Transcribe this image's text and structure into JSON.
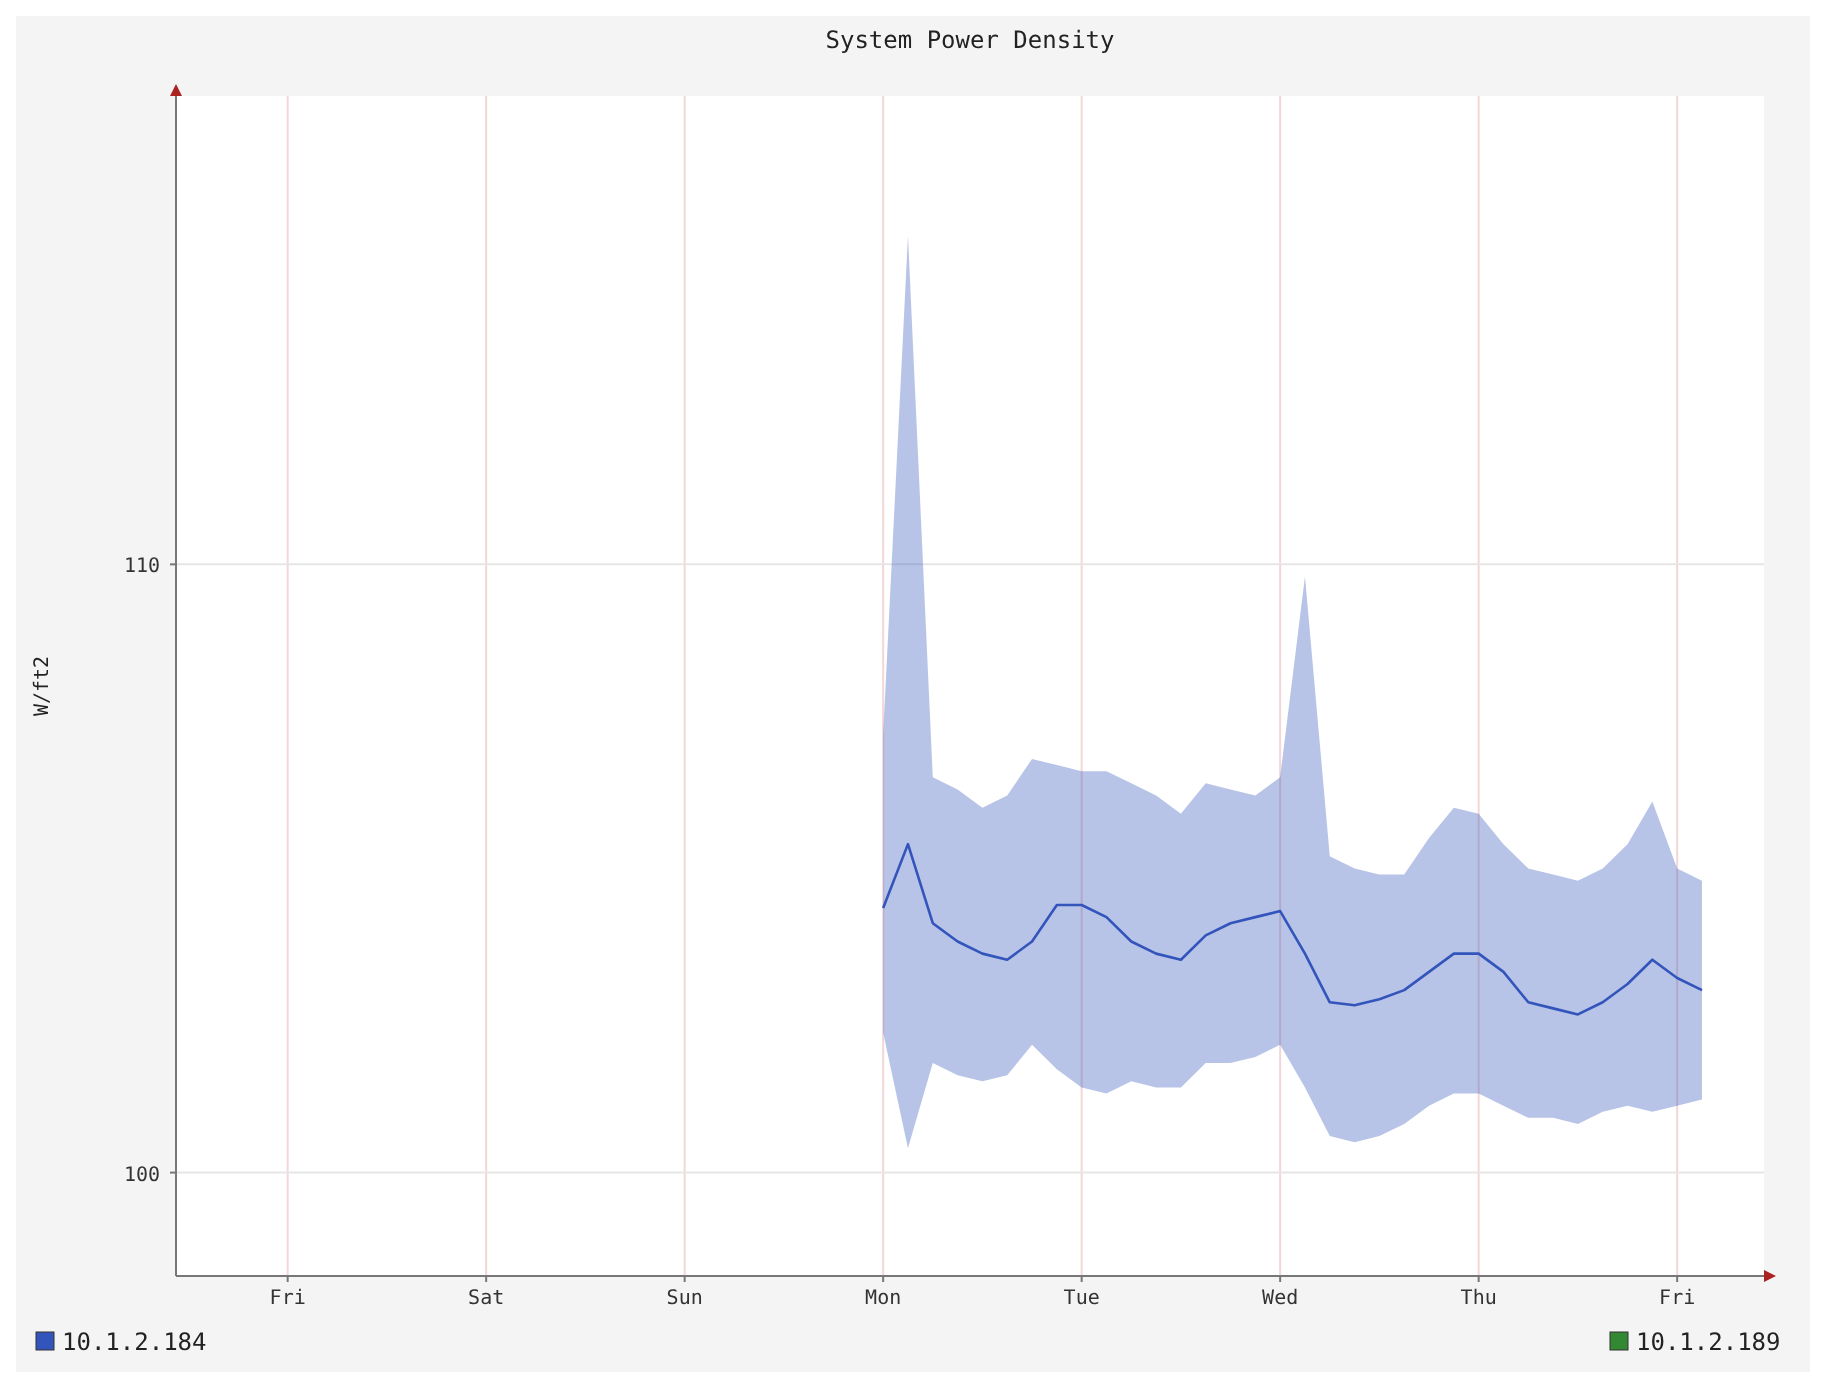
{
  "chart_data": {
    "type": "line",
    "title": "System Power Density",
    "ylabel": "W/ft2",
    "ylim": [
      98.3,
      117.7
    ],
    "yticks": [
      100,
      110
    ],
    "grid": true,
    "legend": "bottom",
    "line_style": "solid",
    "marker": "none",
    "categories": [
      null,
      null,
      null,
      null,
      "Fri",
      null,
      null,
      null,
      null,
      null,
      null,
      null,
      "Sat",
      null,
      null,
      null,
      null,
      null,
      null,
      null,
      "Sun",
      null,
      null,
      null,
      null,
      null,
      null,
      null,
      "Mon",
      null,
      null,
      null,
      null,
      null,
      null,
      null,
      "Tue",
      null,
      null,
      null,
      null,
      null,
      null,
      null,
      "Wed",
      null,
      null,
      null,
      null,
      null,
      null,
      null,
      "Thu",
      null,
      null,
      null,
      null,
      null,
      null,
      null,
      "Fri",
      null,
      null,
      null
    ],
    "series": [
      {
        "name": "10.1.2.184",
        "color": "#3355bb",
        "values": [
          null,
          null,
          null,
          null,
          null,
          null,
          null,
          null,
          null,
          null,
          null,
          null,
          null,
          null,
          null,
          null,
          null,
          null,
          null,
          null,
          null,
          null,
          null,
          null,
          null,
          null,
          null,
          null,
          104.35,
          105.4,
          104.1,
          103.8,
          103.6,
          103.5,
          103.8,
          104.4,
          104.4,
          104.2,
          103.8,
          103.6,
          103.5,
          103.9,
          104.1,
          104.2,
          104.3,
          103.6,
          102.8,
          102.75,
          102.85,
          103.0,
          103.3,
          103.6,
          103.6,
          103.3,
          102.8,
          102.7,
          102.6,
          102.8,
          103.1,
          103.5,
          103.2,
          103.0,
          null,
          null
        ],
        "upper": [
          null,
          null,
          null,
          null,
          null,
          null,
          null,
          null,
          null,
          null,
          null,
          null,
          null,
          null,
          null,
          null,
          null,
          null,
          null,
          null,
          null,
          null,
          null,
          null,
          null,
          null,
          null,
          null,
          107.2,
          115.4,
          106.5,
          106.3,
          106.0,
          106.2,
          106.8,
          106.7,
          106.6,
          106.6,
          106.4,
          106.2,
          105.9,
          106.4,
          106.3,
          106.2,
          106.5,
          109.8,
          105.2,
          105.0,
          104.9,
          104.9,
          105.5,
          106.0,
          105.9,
          105.4,
          105.0,
          104.9,
          104.8,
          105.0,
          105.4,
          106.1,
          105.0,
          104.8,
          null,
          null
        ],
        "lower": [
          null,
          null,
          null,
          null,
          null,
          null,
          null,
          null,
          null,
          null,
          null,
          null,
          null,
          null,
          null,
          null,
          null,
          null,
          null,
          null,
          null,
          null,
          null,
          null,
          null,
          null,
          null,
          null,
          102.3,
          100.4,
          101.8,
          101.6,
          101.5,
          101.6,
          102.1,
          101.7,
          101.4,
          101.3,
          101.5,
          101.4,
          101.4,
          101.8,
          101.8,
          101.9,
          102.1,
          101.4,
          100.6,
          100.5,
          100.6,
          100.8,
          101.1,
          101.3,
          101.3,
          101.1,
          100.9,
          100.9,
          100.8,
          101.0,
          101.1,
          101.0,
          101.1,
          101.2,
          null,
          null
        ]
      },
      {
        "name": "10.1.2.189",
        "color": "#338833",
        "values": [
          null,
          null,
          null,
          null,
          null,
          null,
          null,
          null,
          null,
          null,
          null,
          null,
          null,
          null,
          null,
          null,
          null,
          null,
          null,
          null,
          null,
          null,
          null,
          null,
          null,
          null,
          null,
          null,
          null,
          null,
          null,
          null,
          null,
          null,
          null,
          null,
          null,
          null,
          null,
          null,
          null,
          null,
          null,
          null,
          null,
          null,
          null,
          null,
          null,
          null,
          null,
          null,
          null,
          null,
          null,
          null,
          null,
          null,
          null,
          null,
          null,
          null,
          null,
          null
        ]
      }
    ]
  }
}
